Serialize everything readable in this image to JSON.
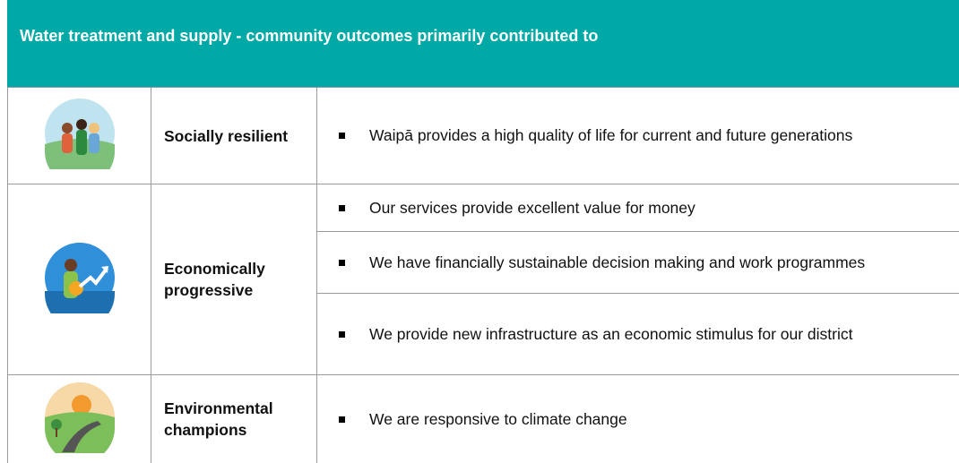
{
  "header": {
    "title": "Water treatment and supply - community outcomes primarily contributed to"
  },
  "rows": [
    {
      "label": "Socially resilient",
      "items": [
        "Waipā provides a high quality of life for current and future generations"
      ]
    },
    {
      "label": "Economically progressive",
      "items": [
        "Our services provide excellent value for money",
        "We have financially sustainable decision making and work programmes",
        "We provide new infrastructure as an economic stimulus for our district"
      ]
    },
    {
      "label": "Environmental champions",
      "items": [
        "We are responsive to climate change"
      ]
    }
  ]
}
